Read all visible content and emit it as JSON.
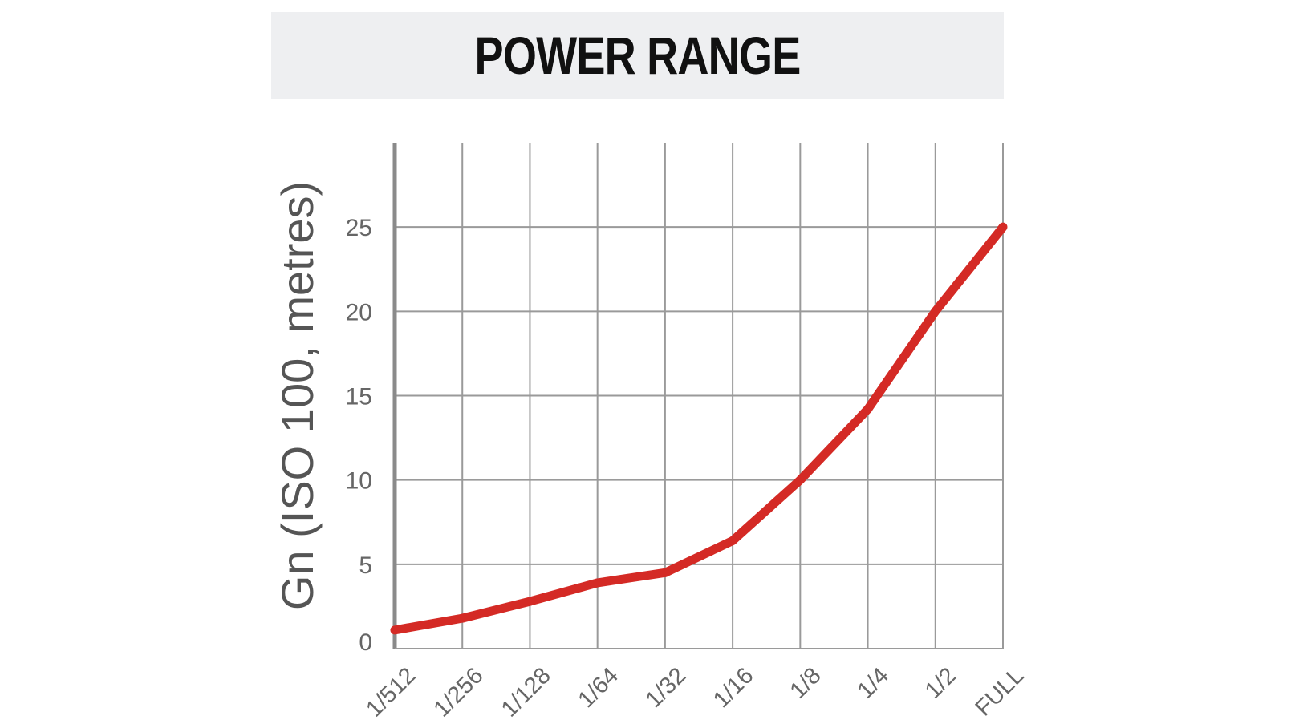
{
  "title": "POWER RANGE",
  "chart_data": {
    "type": "line",
    "title": "POWER RANGE",
    "xlabel": "",
    "ylabel": "Gn (ISO 100, metres)",
    "categories": [
      "1/512",
      "1/256",
      "1/128",
      "1/64",
      "1/32",
      "1/16",
      "1/8",
      "1/4",
      "1/2",
      "FULL"
    ],
    "series": [
      {
        "values": [
          1.1,
          1.8,
          2.8,
          3.9,
          4.5,
          6.4,
          10,
          14.2,
          20,
          25
        ],
        "color": "#d42a25"
      }
    ],
    "yticks": [
      "0",
      "5",
      "10",
      "15",
      "20",
      "25"
    ],
    "ylim": [
      0,
      30
    ],
    "grid": true,
    "legend": "none"
  }
}
